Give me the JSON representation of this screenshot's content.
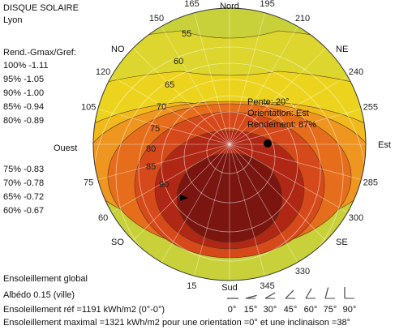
{
  "header": {
    "title": "DISQUE SOLAIRE",
    "location": "Lyon"
  },
  "legend": {
    "heading": "Rend.-Gmax/Gref:",
    "rows_top": [
      {
        "pct": "100%",
        "val": "-1.11"
      },
      {
        "pct": "95%",
        "val": "-1.05"
      },
      {
        "pct": "90%",
        "val": "-1.00"
      },
      {
        "pct": "85%",
        "val": "-0.94"
      },
      {
        "pct": "80%",
        "val": "-0.89"
      }
    ],
    "rows_bottom": [
      {
        "pct": "75%",
        "val": "-0.83"
      },
      {
        "pct": "70%",
        "val": "-0.78"
      },
      {
        "pct": "65%",
        "val": "-0.72"
      },
      {
        "pct": "60%",
        "val": "-0.67"
      }
    ]
  },
  "footer": {
    "global": "Ensoleillement global",
    "albedo": "Albédo 0.15 (ville)",
    "ref": "Ensoleillement réf =1191 kWh/m2 (0°-0°)",
    "max": "Ensoleillement maximal =1321 kWh/m2 pour une orientation =0° et une inclinaison =38°"
  },
  "tilt_icons": [
    "0°",
    "15°",
    "30°",
    "45°",
    "60°",
    "75°",
    "90°"
  ],
  "chart_data": {
    "type": "polar-contour",
    "compass_labels": {
      "north": "Nord",
      "south": "Sud",
      "east": "Est",
      "west": "Ouest",
      "ne": "NE",
      "nw": "NO",
      "se": "SE",
      "sw": "SO"
    },
    "azimuth_labels": [
      {
        "text": "195",
        "angle": 195
      },
      {
        "text": "165",
        "angle": 165
      },
      {
        "text": "210",
        "angle": 210
      },
      {
        "text": "150",
        "angle": 150
      },
      {
        "text": "240",
        "angle": 240
      },
      {
        "text": "120",
        "angle": 120
      },
      {
        "text": "255",
        "angle": 255
      },
      {
        "text": "105",
        "angle": 105
      },
      {
        "text": "285",
        "angle": 285
      },
      {
        "text": "75",
        "angle": 75
      },
      {
        "text": "300",
        "angle": 300
      },
      {
        "text": "60",
        "angle": 60
      },
      {
        "text": "330",
        "angle": 330
      },
      {
        "text": "345",
        "angle": 345
      },
      {
        "text": "15",
        "angle": 15
      }
    ],
    "tilt_labels": [
      {
        "text": "55",
        "tilt": 55
      },
      {
        "text": "60",
        "tilt": 60
      },
      {
        "text": "65",
        "tilt": 65
      },
      {
        "text": "70",
        "tilt": 70
      },
      {
        "text": "75",
        "tilt": 75
      },
      {
        "text": "80",
        "tilt": 80
      },
      {
        "text": "85",
        "tilt": 85
      },
      {
        "text": "90",
        "tilt": 90
      }
    ],
    "bands": [
      {
        "level": 60,
        "color": "#c8d13a"
      },
      {
        "level": 65,
        "color": "#dcd62e"
      },
      {
        "level": 70,
        "color": "#ecd41e"
      },
      {
        "level": 75,
        "color": "#f1b91c"
      },
      {
        "level": 80,
        "color": "#ee9620"
      },
      {
        "level": 85,
        "color": "#e66d1c"
      },
      {
        "level": 90,
        "color": "#d6491a"
      },
      {
        "level": 95,
        "color": "#b02815"
      },
      {
        "level": 100,
        "color": "#7a1510"
      }
    ],
    "point": {
      "tilt": 20,
      "orientation": "Est",
      "label_tilt": "Pente: 20°",
      "label_orient": "Orientation: Est",
      "label_yield": "Rendement: 87%"
    }
  }
}
